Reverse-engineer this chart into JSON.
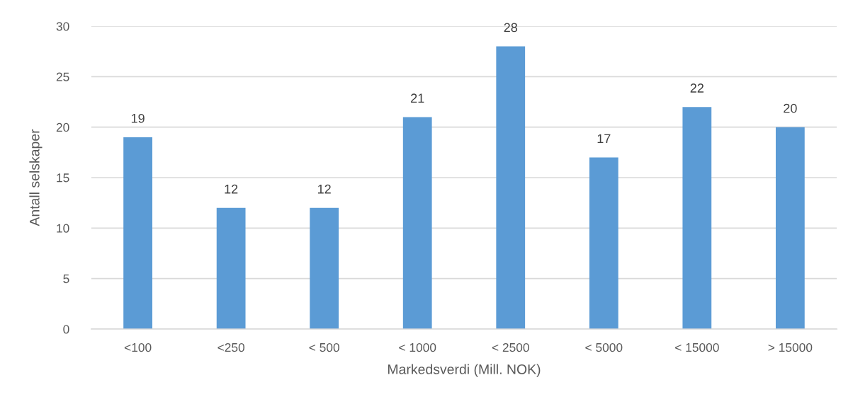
{
  "chart_data": {
    "type": "bar",
    "xlabel": "Markedsverdi (Mill. NOK)",
    "ylabel": "Antall selskaper",
    "categories": [
      "<100",
      "<250",
      "< 500",
      "< 1000",
      "< 2500",
      "< 5000",
      "< 15000",
      "> 15000"
    ],
    "values": [
      19,
      12,
      12,
      21,
      28,
      17,
      22,
      20
    ],
    "color": "#5b9bd5",
    "ylim": [
      0,
      30
    ],
    "yticks": [
      0,
      5,
      10,
      15,
      20,
      25,
      30
    ],
    "grid": "y",
    "data_labels": true
  }
}
